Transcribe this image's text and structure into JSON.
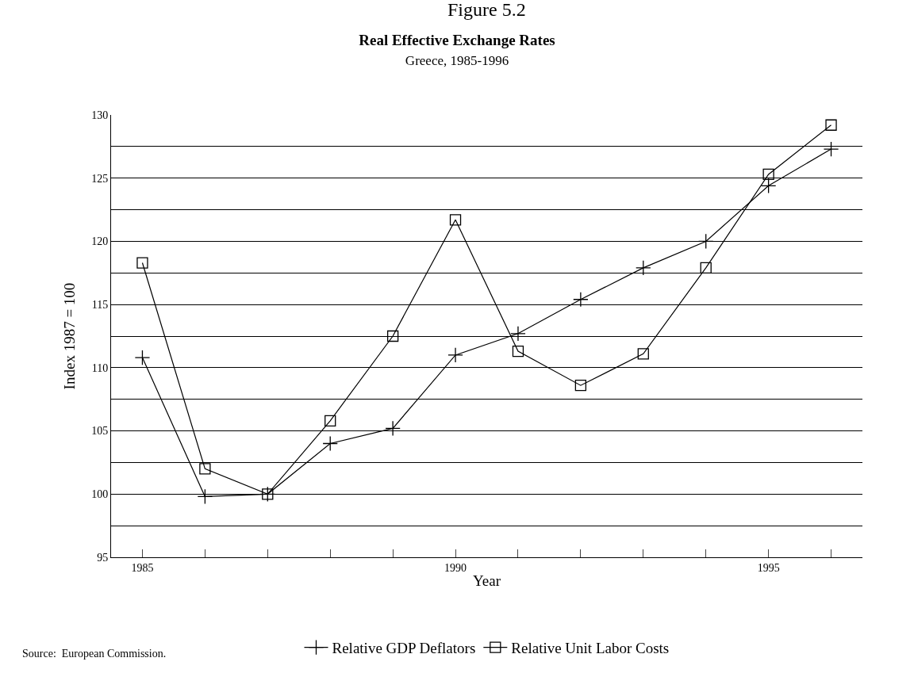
{
  "chart_data": {
    "type": "line",
    "title": "Real Effective Exchange Rates",
    "subtitle": "Greece, 1985-1996",
    "xlabel": "Year",
    "ylabel": "Index 1987 = 100",
    "annotations": [
      "Figure 5.2",
      "Source:  European Commission."
    ],
    "x": [
      1985,
      1986,
      1987,
      1988,
      1989,
      1990,
      1991,
      1992,
      1993,
      1994,
      1995,
      1996
    ],
    "series": [
      {
        "name": "Relative GDP Deflators",
        "color": "#000000",
        "marker": "cross",
        "values": [
          110.8,
          99.8,
          100,
          104,
          105.2,
          111,
          112.7,
          115.4,
          117.9,
          120,
          124.4,
          127.3
        ]
      },
      {
        "name": "Relative Unit Labor Costs",
        "color": "#000000",
        "marker": "square",
        "values": [
          118.3,
          102,
          100,
          105.8,
          112.5,
          121.7,
          111.3,
          108.6,
          111.1,
          117.9,
          125.3,
          129.2
        ]
      }
    ],
    "xlim": [
      1984.5,
      1996.5
    ],
    "xticks": [
      1985,
      {
        "value": 1986,
        "label": null
      },
      {
        "value": 1987,
        "label": null
      },
      {
        "value": 1988,
        "label": null
      },
      {
        "value": 1989,
        "label": null
      },
      1990,
      {
        "value": 1991,
        "label": null
      },
      {
        "value": 1992,
        "label": null
      },
      {
        "value": 1993,
        "label": null
      },
      {
        "value": 1994,
        "label": null
      },
      1995,
      {
        "value": 1996,
        "label": null
      }
    ],
    "ylim": [
      95,
      130
    ],
    "yticks": [
      95,
      {
        "value": 97.5,
        "label": null
      },
      100,
      {
        "value": 102.5,
        "label": null
      },
      105,
      {
        "value": 107.5,
        "label": null
      },
      110,
      {
        "value": 112.5,
        "label": null
      },
      115,
      {
        "value": 117.5,
        "label": null
      },
      120,
      {
        "value": 122.5,
        "label": null
      },
      125,
      {
        "value": 127.5,
        "label": null
      },
      130
    ],
    "grid": "y",
    "legend": "bottom",
    "line_style": "solid"
  }
}
